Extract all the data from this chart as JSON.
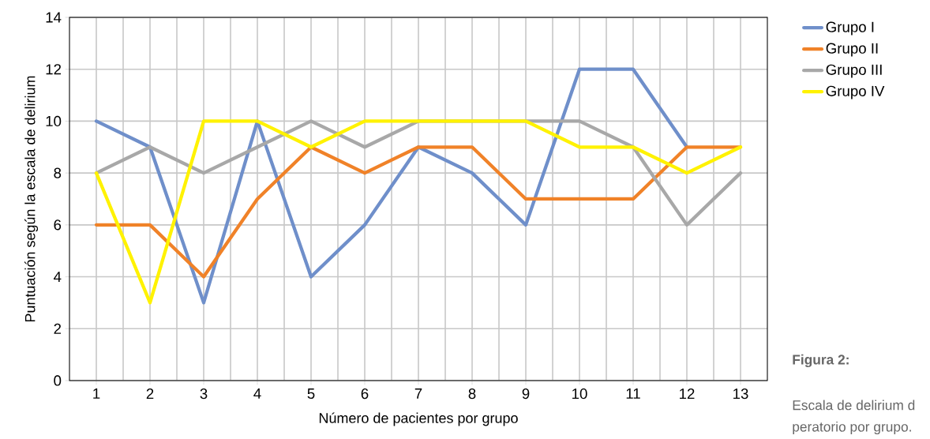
{
  "chart_data": {
    "type": "line",
    "xlabel": "Número de pacientes por grupo",
    "ylabel": "Puntuación según la escala de delirium",
    "categories": [
      "1",
      "2",
      "3",
      "4",
      "5",
      "6",
      "7",
      "8",
      "9",
      "10",
      "11",
      "12",
      "13"
    ],
    "series": [
      {
        "name": "Grupo I",
        "color": "#6f8fca",
        "values": [
          10,
          9,
          3,
          10,
          4,
          6,
          9,
          8,
          6,
          12,
          12,
          9,
          null
        ]
      },
      {
        "name": "Grupo II",
        "color": "#f08228",
        "values": [
          6,
          6,
          4,
          7,
          9,
          8,
          9,
          9,
          7,
          7,
          7,
          9,
          9
        ]
      },
      {
        "name": "Grupo III",
        "color": "#a8a8a8",
        "values": [
          8,
          9,
          8,
          9,
          10,
          9,
          10,
          10,
          10,
          10,
          9,
          6,
          8
        ]
      },
      {
        "name": "Grupo IV",
        "color": "#fff200",
        "values": [
          8,
          3,
          10,
          10,
          9,
          10,
          10,
          10,
          10,
          9,
          9,
          8,
          9
        ]
      }
    ],
    "ylim": [
      0,
      14
    ],
    "yticks": [
      0,
      2,
      4,
      6,
      8,
      10,
      12,
      14
    ],
    "grid": true,
    "legend": "top right",
    "line_style": "solid",
    "annotations": [
      "**Figura 2:**",
      "Escala de delirium d",
      "peratorio por grupo."
    ]
  }
}
